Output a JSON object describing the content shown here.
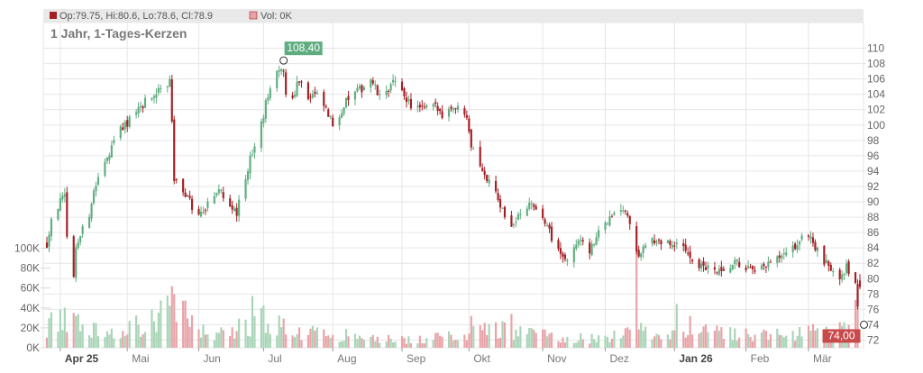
{
  "legend": {
    "ohlc_text": "Op:79.75, Hi:80.6, Lo:78.6, Cl:78.9",
    "vol_text": "Vol: 0K",
    "ohlc_swatch_color": "#a31f24",
    "vol_swatch_color": "#e8a3a8"
  },
  "chart_title": "1 Jahr, 1-Tages-Kerzen",
  "colors": {
    "up": "#5fad7f",
    "down": "#a31f24",
    "vol_up": "#a9d4b7",
    "vol_down": "#e8a3a8",
    "grid": "#e6e6e6",
    "text": "#777777",
    "high_badge": "#5fad7f",
    "low_badge": "#c94a4a"
  },
  "high_marker": {
    "label": "108,40",
    "value": 108.4,
    "date": "2025-07-10"
  },
  "low_marker": {
    "label": "74,00",
    "value": 74.0,
    "date": "2026-03-24"
  },
  "chart_data": {
    "type": "candlestick",
    "title": "1 Jahr, 1-Tages-Kerzen",
    "price_axis": {
      "ticks": [
        "72",
        "74",
        "76",
        "78",
        "80",
        "82",
        "84",
        "86",
        "88",
        "90",
        "92",
        "94",
        "96",
        "98",
        "100",
        "102",
        "104",
        "106",
        "108",
        "110"
      ],
      "range": [
        71,
        111
      ]
    },
    "volume_axis": {
      "ticks": [
        "0K",
        "20K",
        "40K",
        "60K",
        "80K",
        "100K"
      ],
      "range": [
        0,
        105000
      ]
    },
    "x_axis": {
      "labels": [
        "Apr 25",
        "Mai",
        "Jun",
        "Jul",
        "Aug",
        "Sep",
        "Okt",
        "Nov",
        "Dez",
        "Jan 26",
        "Feb",
        "Mär"
      ],
      "bold_labels": [
        "Apr 25",
        "Jan 26"
      ],
      "start_date": "2025-03-26",
      "end_date": "2026-03-25"
    },
    "price_path": [
      [
        "2025-03-26",
        84.5
      ],
      [
        "2025-03-28",
        88.0
      ],
      [
        "2025-04-01",
        90.0
      ],
      [
        "2025-04-03",
        90.5
      ],
      [
        "2025-04-04",
        86.0
      ],
      [
        "2025-04-07",
        80.0
      ],
      [
        "2025-04-08",
        83.5
      ],
      [
        "2025-04-10",
        86.0
      ],
      [
        "2025-04-14",
        88.5
      ],
      [
        "2025-04-17",
        92.5
      ],
      [
        "2025-04-22",
        96.0
      ],
      [
        "2025-04-28",
        99.5
      ],
      [
        "2025-05-05",
        101.5
      ],
      [
        "2025-05-09",
        103.0
      ],
      [
        "2025-05-15",
        104.5
      ],
      [
        "2025-05-20",
        105.5
      ],
      [
        "2025-05-21",
        100.0
      ],
      [
        "2025-05-22",
        93.0
      ],
      [
        "2025-05-26",
        91.5
      ],
      [
        "2025-05-30",
        89.5
      ],
      [
        "2025-06-03",
        88.5
      ],
      [
        "2025-06-06",
        90.0
      ],
      [
        "2025-06-10",
        91.5
      ],
      [
        "2025-06-13",
        91.0
      ],
      [
        "2025-06-17",
        89.5
      ],
      [
        "2025-06-19",
        88.5
      ],
      [
        "2025-06-20",
        90.5
      ],
      [
        "2025-06-25",
        95.5
      ],
      [
        "2025-06-30",
        100.0
      ],
      [
        "2025-07-03",
        104.0
      ],
      [
        "2025-07-07",
        106.5
      ],
      [
        "2025-07-10",
        107.3
      ],
      [
        "2025-07-11",
        104.0
      ],
      [
        "2025-07-14",
        103.5
      ],
      [
        "2025-07-16",
        105.5
      ],
      [
        "2025-07-18",
        106.0
      ],
      [
        "2025-07-21",
        103.5
      ],
      [
        "2025-07-24",
        104.0
      ],
      [
        "2025-07-28",
        102.5
      ],
      [
        "2025-08-01",
        100.0
      ],
      [
        "2025-08-05",
        102.0
      ],
      [
        "2025-08-08",
        103.5
      ],
      [
        "2025-08-13",
        104.5
      ],
      [
        "2025-08-18",
        106.0
      ],
      [
        "2025-08-22",
        103.5
      ],
      [
        "2025-08-28",
        105.5
      ],
      [
        "2025-09-02",
        104.0
      ],
      [
        "2025-09-05",
        102.5
      ],
      [
        "2025-09-10",
        102.0
      ],
      [
        "2025-09-15",
        102.5
      ],
      [
        "2025-09-19",
        101.5
      ],
      [
        "2025-09-24",
        102.5
      ],
      [
        "2025-09-30",
        101.5
      ],
      [
        "2025-10-02",
        97.5
      ],
      [
        "2025-10-06",
        95.0
      ],
      [
        "2025-10-10",
        92.5
      ],
      [
        "2025-10-14",
        90.5
      ],
      [
        "2025-10-17",
        88.0
      ],
      [
        "2025-10-21",
        87.0
      ],
      [
        "2025-10-24",
        88.5
      ],
      [
        "2025-10-28",
        89.5
      ],
      [
        "2025-10-31",
        89.0
      ],
      [
        "2025-11-04",
        87.5
      ],
      [
        "2025-11-07",
        85.5
      ],
      [
        "2025-11-11",
        83.5
      ],
      [
        "2025-11-14",
        82.5
      ],
      [
        "2025-11-17",
        84.0
      ],
      [
        "2025-11-20",
        85.5
      ],
      [
        "2025-11-24",
        83.5
      ],
      [
        "2025-11-27",
        85.5
      ],
      [
        "2025-12-01",
        87.0
      ],
      [
        "2025-12-04",
        88.0
      ],
      [
        "2025-12-08",
        89.0
      ],
      [
        "2025-12-11",
        88.5
      ],
      [
        "2025-12-15",
        83.0
      ],
      [
        "2025-12-18",
        84.0
      ],
      [
        "2025-12-22",
        85.0
      ],
      [
        "2025-12-29",
        84.5
      ],
      [
        "2026-01-05",
        84.0
      ],
      [
        "2026-01-09",
        82.5
      ],
      [
        "2026-01-13",
        81.5
      ],
      [
        "2026-01-19",
        81.0
      ],
      [
        "2026-01-23",
        80.5
      ],
      [
        "2026-01-28",
        82.0
      ],
      [
        "2026-02-02",
        81.5
      ],
      [
        "2026-02-06",
        80.5
      ],
      [
        "2026-02-10",
        81.5
      ],
      [
        "2026-02-16",
        82.5
      ],
      [
        "2026-02-20",
        83.0
      ],
      [
        "2026-02-25",
        84.5
      ],
      [
        "2026-03-02",
        86.0
      ],
      [
        "2026-03-05",
        84.0
      ],
      [
        "2026-03-09",
        82.0
      ],
      [
        "2026-03-12",
        81.5
      ],
      [
        "2026-03-16",
        80.5
      ],
      [
        "2026-03-19",
        81.5
      ],
      [
        "2026-03-23",
        79.5
      ],
      [
        "2026-03-24",
        76.0
      ],
      [
        "2026-03-25",
        78.9
      ]
    ],
    "volume_profile": [
      [
        "2025-03-26",
        22000
      ],
      [
        "2025-04-07",
        30000
      ],
      [
        "2025-04-20",
        12000
      ],
      [
        "2025-05-05",
        22000
      ],
      [
        "2025-05-21",
        42000
      ],
      [
        "2025-06-05",
        15000
      ],
      [
        "2025-06-24",
        20000
      ],
      [
        "2025-07-01",
        30000
      ],
      [
        "2025-07-15",
        16000
      ],
      [
        "2025-08-01",
        14000
      ],
      [
        "2025-08-20",
        9000
      ],
      [
        "2025-09-10",
        8000
      ],
      [
        "2025-09-30",
        14000
      ],
      [
        "2025-10-10",
        20000
      ],
      [
        "2025-10-24",
        16000
      ],
      [
        "2025-11-10",
        10000
      ],
      [
        "2025-12-01",
        9000
      ],
      [
        "2025-12-15",
        18000
      ],
      [
        "2026-01-10",
        16000
      ],
      [
        "2026-02-01",
        14000
      ],
      [
        "2026-02-20",
        12000
      ],
      [
        "2026-03-10",
        18000
      ],
      [
        "2026-03-25",
        24000
      ]
    ],
    "volume_spikes": [
      [
        "2025-04-07",
        35000
      ],
      [
        "2025-05-21",
        62000
      ],
      [
        "2025-05-22",
        54000
      ],
      [
        "2025-06-26",
        52000
      ],
      [
        "2025-06-30",
        40000
      ],
      [
        "2025-10-02",
        32000
      ],
      [
        "2025-10-20",
        34000
      ],
      [
        "2025-12-15",
        100000
      ],
      [
        "2026-01-02",
        44000
      ],
      [
        "2026-01-08",
        32000
      ],
      [
        "2026-03-23",
        48000
      ],
      [
        "2026-03-24",
        54000
      ]
    ],
    "last_candle": {
      "open": 79.75,
      "high": 80.6,
      "low": 78.6,
      "close": 78.9,
      "volume": 0
    }
  }
}
